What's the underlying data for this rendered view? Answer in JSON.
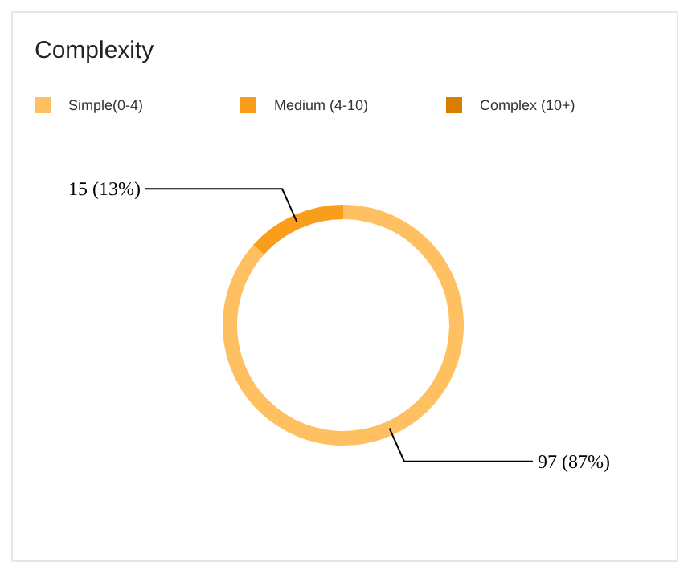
{
  "chart_data": {
    "type": "donut",
    "title": "Complexity",
    "categories": [
      "Simple(0-4)",
      "Medium (4-10)",
      "Complex (10+)"
    ],
    "values": [
      97,
      15,
      0
    ],
    "colors": [
      "#ffc061",
      "#f99e1a",
      "#d67f00"
    ],
    "value_labels": [
      "97 (87%)",
      "15 (13%)",
      null
    ],
    "legend": "top"
  }
}
